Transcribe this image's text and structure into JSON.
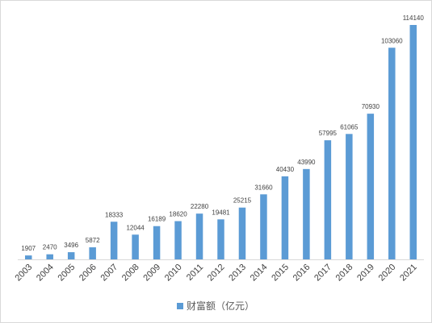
{
  "chart_data": {
    "type": "bar",
    "categories": [
      "2003",
      "2004",
      "2005",
      "2006",
      "2007",
      "2008",
      "2009",
      "2010",
      "2011",
      "2012",
      "2013",
      "2014",
      "2015",
      "2016",
      "2017",
      "2018",
      "2019",
      "2020",
      "2021"
    ],
    "series": [
      {
        "name": "财富额（亿元）",
        "values": [
          1907,
          2470,
          3496,
          5872,
          18333,
          12044,
          16189,
          18620,
          22280,
          19481,
          25215,
          31660,
          40430,
          43990,
          57995,
          61065,
          70930,
          103060,
          114140
        ],
        "color": "#5b9bd5"
      }
    ],
    "data_labels": [
      "1907",
      "2470",
      "3496",
      "5872",
      "18333",
      "12044",
      "16189",
      "18620",
      "22280",
      "19481",
      "25215",
      "31660",
      "40430",
      "43990",
      "57995",
      "61065",
      "70930",
      "103060",
      "114140"
    ],
    "ylim": [
      0,
      114140
    ],
    "grid": false,
    "legend_position": "bottom",
    "xlabel": "",
    "ylabel": "",
    "title": ""
  }
}
